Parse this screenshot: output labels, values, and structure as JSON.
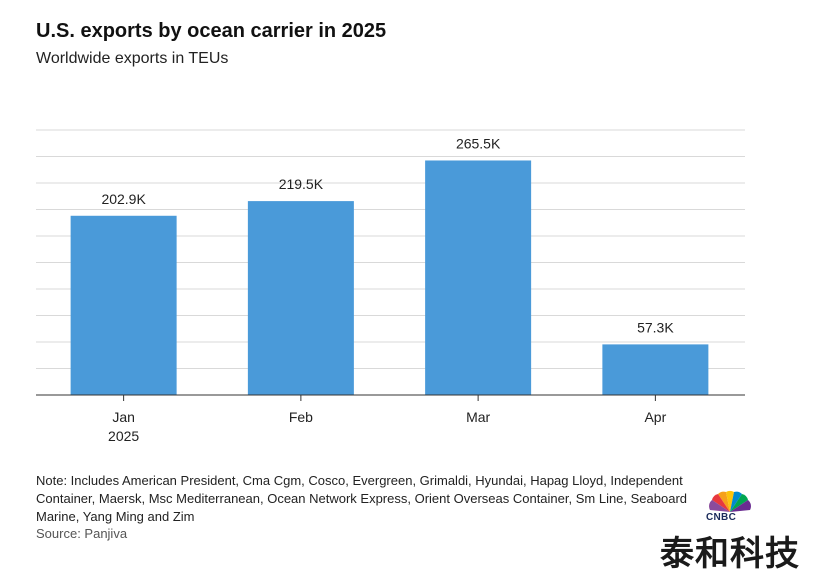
{
  "header": {
    "title": "U.S. exports by ocean carrier in 2025",
    "subtitle": "Worldwide exports in TEUs"
  },
  "chart_data": {
    "type": "bar",
    "categories": [
      "Jan\n2025",
      "Feb",
      "Mar",
      "Apr"
    ],
    "values": [
      202.9,
      219.5,
      265.5,
      57.3
    ],
    "data_labels": [
      "202.9K",
      "219.5K",
      "265.5K",
      "57.3K"
    ],
    "title": "U.S. exports by ocean carrier in 2025",
    "subtitle": "Worldwide exports in TEUs",
    "xlabel": "",
    "ylabel": "",
    "ylim": [
      0,
      300
    ],
    "grid": true,
    "bar_color": "#4a9ad9"
  },
  "footer": {
    "note": "Note: Includes American President, Cma Cgm, Cosco, Evergreen, Grimaldi, Hyundai, Hapag Lloyd, Independent Container, Maersk, Msc Mediterranean, Ocean Network Express, Orient Overseas Container, Sm Line, Seaboard Marine, Yang Ming and Zim",
    "source": "Source: Panjiva"
  },
  "branding": {
    "logo_icon": "cnbc-peacock-icon",
    "logo_text": "CNBC",
    "watermark": "泰和科技"
  }
}
